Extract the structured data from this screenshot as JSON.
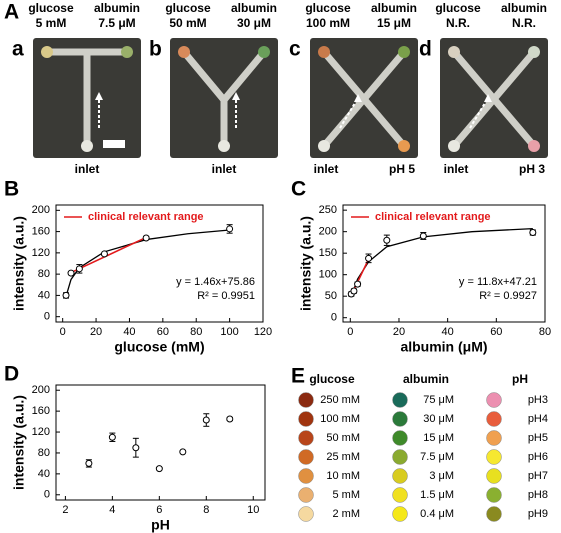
{
  "panel_a": {
    "label": "A",
    "photos": [
      {
        "label": "a",
        "glucose": [
          "glucose",
          "5 mM"
        ],
        "albumin": [
          "albumin",
          "7.5 μM"
        ],
        "bottom": [
          "inlet"
        ],
        "shape": "T",
        "colors": [
          "#d9c98a",
          "#9ab06a"
        ]
      },
      {
        "label": "b",
        "glucose": [
          "glucose",
          "50 mM"
        ],
        "albumin": [
          "albumin",
          "30 μM"
        ],
        "bottom": [
          "inlet"
        ],
        "shape": "Y",
        "colors": [
          "#d88a5a",
          "#6aa05a"
        ]
      },
      {
        "label": "c",
        "glucose": [
          "glucose",
          "100 mM"
        ],
        "albumin": [
          "albumin",
          "15 μM"
        ],
        "bottom": [
          "inlet",
          "pH 5"
        ],
        "shape": "X",
        "colors": [
          "#c87a4a",
          "#7aa04a",
          "#e89a50"
        ]
      },
      {
        "label": "d",
        "glucose": [
          "glucose",
          "N.R."
        ],
        "albumin": [
          "albumin",
          "N.R."
        ],
        "bottom": [
          "inlet",
          "pH 3"
        ],
        "shape": "X",
        "colors": [
          "#d8d0c0",
          "#d0d8c8",
          "#e8a0a8"
        ]
      }
    ]
  },
  "chart_data": [
    {
      "type": "scatter",
      "panel": "B",
      "xlabel": "glucose (mM)",
      "ylabel": "intensity (a.u.)",
      "x": [
        2,
        5,
        10,
        25,
        50,
        100
      ],
      "values": [
        40,
        82,
        90,
        118,
        148,
        165
      ],
      "errors": [
        5,
        3,
        8,
        3,
        3,
        8
      ],
      "fit_x": [
        2,
        5,
        10,
        25,
        50,
        75,
        100
      ],
      "fit_values": [
        38,
        70,
        92,
        122,
        145,
        156,
        163
      ],
      "fit_color": "#000000",
      "series": [
        {
          "name": "clinical relevant range",
          "color": "#e31a1c",
          "x": [
            5,
            50
          ],
          "values": [
            83,
            149
          ]
        }
      ],
      "annotations": [
        "y = 1.46x+75.86",
        "R² = 0.9951"
      ],
      "xlim": [
        -4,
        120
      ],
      "xticks": [
        0,
        20,
        40,
        60,
        80,
        100,
        120
      ],
      "ylim": [
        -10,
        210
      ],
      "yticks": [
        0,
        40,
        80,
        120,
        160,
        200
      ]
    },
    {
      "type": "scatter",
      "panel": "C",
      "xlabel": "albumin (μM)",
      "ylabel": "intensity (a.u.)",
      "x": [
        0.4,
        1.5,
        3,
        7.5,
        15,
        30,
        75
      ],
      "values": [
        55,
        62,
        78,
        138,
        180,
        190,
        198
      ],
      "errors": [
        5,
        5,
        5,
        10,
        12,
        8,
        6
      ],
      "fit_x": [
        0.4,
        3,
        7.5,
        15,
        30,
        50,
        75
      ],
      "fit_values": [
        50,
        90,
        130,
        165,
        188,
        200,
        207
      ],
      "fit_color": "#000000",
      "series": [
        {
          "name": "clinical relevant range",
          "color": "#e31a1c",
          "x": [
            0.4,
            7.5
          ],
          "values": [
            52,
            136
          ]
        }
      ],
      "annotations": [
        "y = 11.8x+47.21",
        "R² = 0.9927"
      ],
      "xlim": [
        -3,
        80
      ],
      "xticks": [
        0,
        20,
        40,
        60,
        80
      ],
      "ylim": [
        -10,
        262
      ],
      "yticks": [
        0,
        50,
        100,
        150,
        200,
        250
      ]
    },
    {
      "type": "scatter",
      "panel": "D",
      "xlabel": "pH",
      "ylabel": "intensity (a.u.)",
      "x": [
        3,
        4,
        5,
        6,
        7,
        8,
        9
      ],
      "values": [
        60,
        110,
        90,
        50,
        82,
        143,
        145
      ],
      "errors": [
        7,
        8,
        18,
        2,
        2,
        12,
        3
      ],
      "xlim": [
        1.6,
        10.5
      ],
      "xticks": [
        2,
        4,
        6,
        8,
        10
      ],
      "ylim": [
        -10,
        210
      ],
      "yticks": [
        0,
        40,
        80,
        120,
        160,
        200
      ]
    }
  ],
  "panel_e": {
    "label": "E",
    "columns": [
      {
        "header": "glucose",
        "rows": [
          {
            "label": "250 mM",
            "color": "#8b2a10"
          },
          {
            "label": "100 mM",
            "color": "#a0340f"
          },
          {
            "label": "50 mM",
            "color": "#b8451a"
          },
          {
            "label": "25 mM",
            "color": "#d06a25"
          },
          {
            "label": "10 mM",
            "color": "#e09040"
          },
          {
            "label": "5 mM",
            "color": "#eab070"
          },
          {
            "label": "2 mM",
            "color": "#f5d9a0"
          }
        ]
      },
      {
        "header": "albumin",
        "rows": [
          {
            "label": "75 μM",
            "color": "#1a6b5a"
          },
          {
            "label": "30 μM",
            "color": "#2b7a3a"
          },
          {
            "label": "15 μM",
            "color": "#3f8a2a"
          },
          {
            "label": "7.5 μM",
            "color": "#8aaa30"
          },
          {
            "label": "3 μM",
            "color": "#d8cc20"
          },
          {
            "label": "1.5 μM",
            "color": "#f0e020"
          },
          {
            "label": "0.4 μM",
            "color": "#f5e818"
          }
        ]
      },
      {
        "header": "pH",
        "rows": [
          {
            "label": "pH3",
            "color": "#ec8fb0"
          },
          {
            "label": "pH4",
            "color": "#e85d3c"
          },
          {
            "label": "pH5",
            "color": "#f0a050"
          },
          {
            "label": "pH6",
            "color": "#f6e830"
          },
          {
            "label": "pH7",
            "color": "#e8e020"
          },
          {
            "label": "pH8",
            "color": "#8ab030"
          },
          {
            "label": "pH9",
            "color": "#8a8a20"
          }
        ]
      }
    ]
  }
}
